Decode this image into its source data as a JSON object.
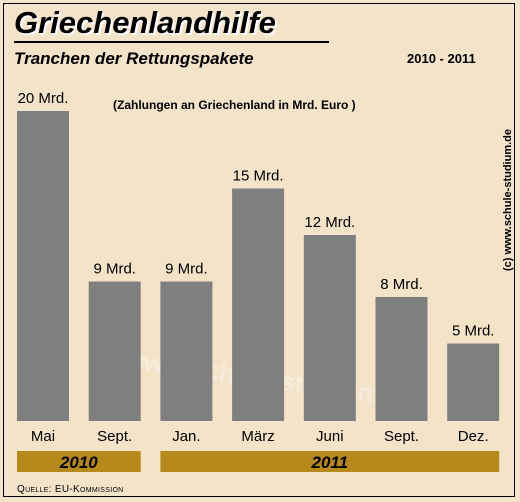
{
  "header": {
    "title": "Griechenlandhilfe",
    "subtitle": "Tranchen der Rettungspakete",
    "period": "2010 - 2011",
    "note": "(Zahlungen an Griechenland in Mrd. Euro )",
    "copyright": "(c) www.schule-studium.de",
    "watermark": "www.schule-studium.de",
    "source": "Quelle: EU-Kommission"
  },
  "colors": {
    "background": "#f3e3c9",
    "bar": "#7f7f7f",
    "year_band": "#b5891a",
    "title_shadow": "#ffffff"
  },
  "chart_data": {
    "type": "bar",
    "title": "Griechenlandhilfe",
    "subtitle": "Tranchen der Rettungspakete",
    "categories": [
      "Mai",
      "Sept.",
      "Jan.",
      "März",
      "Juni",
      "Sept.",
      "Dez."
    ],
    "values": [
      20,
      9,
      9,
      15,
      12,
      8,
      5
    ],
    "data_labels": [
      "20 Mrd.",
      "9 Mrd.",
      "9 Mrd.",
      "15 Mrd.",
      "12 Mrd.",
      "8 Mrd.",
      "5 Mrd."
    ],
    "groups": [
      {
        "label": "2010",
        "start": 0,
        "end": 1
      },
      {
        "label": "2011",
        "start": 2,
        "end": 6
      }
    ],
    "ylim": [
      0,
      20
    ],
    "grid": false,
    "xlabel": "",
    "ylabel": ""
  }
}
